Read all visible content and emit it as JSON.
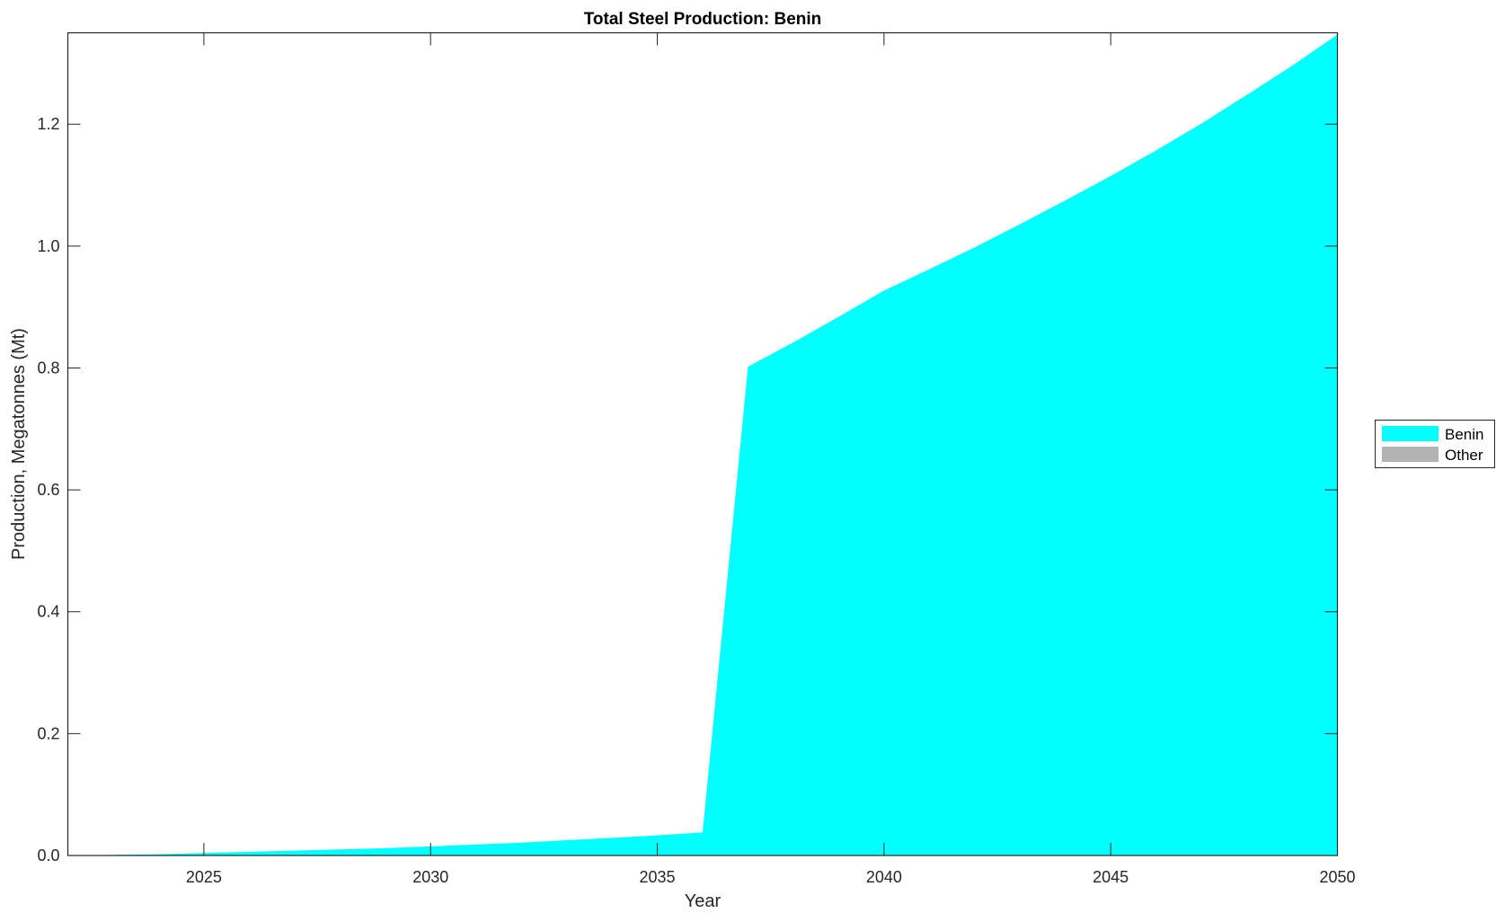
{
  "chart_data": {
    "type": "area",
    "title": "Total Steel Production: Benin",
    "xlabel": "Year",
    "ylabel": "Production, Megatonnes (Mt)",
    "xlim": [
      2022,
      2050
    ],
    "ylim": [
      0,
      1.35
    ],
    "xticks": [
      2025,
      2030,
      2035,
      2040,
      2045,
      2050
    ],
    "yticks": [
      0.0,
      0.2,
      0.4,
      0.6,
      0.8,
      1.0,
      1.2
    ],
    "grid": false,
    "legend_placement": "right",
    "series": [
      {
        "name": "Benin",
        "color": "#00ffff",
        "x": [
          2022,
          2023,
          2024,
          2025,
          2026,
          2027,
          2028,
          2029,
          2030,
          2031,
          2032,
          2033,
          2034,
          2035,
          2036,
          2037,
          2038,
          2039,
          2040,
          2041,
          2042,
          2043,
          2044,
          2045,
          2046,
          2047,
          2048,
          2049,
          2050
        ],
        "values": [
          0.0,
          0.001,
          0.002,
          0.004,
          0.006,
          0.008,
          0.01,
          0.012,
          0.015,
          0.018,
          0.021,
          0.025,
          0.029,
          0.033,
          0.038,
          0.802,
          0.842,
          0.884,
          0.927,
          0.962,
          0.998,
          1.036,
          1.075,
          1.115,
          1.157,
          1.201,
          1.248,
          1.296,
          1.347
        ]
      },
      {
        "name": "Other",
        "color": "#b3b3b3",
        "x": [
          2022,
          2050
        ],
        "values": [
          0,
          0
        ]
      }
    ]
  }
}
